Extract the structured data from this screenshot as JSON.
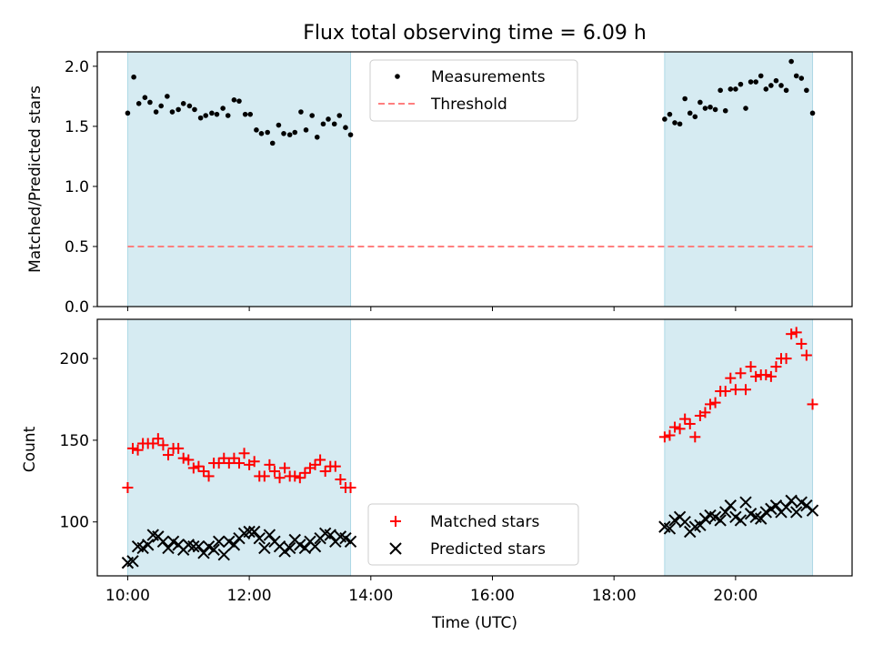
{
  "chart_data": [
    {
      "type": "scatter",
      "title": "Flux total observing time = 6.09 h",
      "xlabel": "",
      "ylabel": "Matched/Predicted stars",
      "xlim": [
        "09:30",
        "21:55"
      ],
      "ylim": [
        0,
        2.12
      ],
      "y_ticks": [
        "0.0",
        "0.5",
        "1.0",
        "1.5",
        "2.0"
      ],
      "x_ticks": [
        "10:00",
        "12:00",
        "14:00",
        "16:00",
        "18:00",
        "20:00"
      ],
      "shaded_spans": [
        [
          "10:00",
          "13:40"
        ],
        [
          "18:50",
          "21:16"
        ]
      ],
      "legend": {
        "position": "top-center",
        "entries": [
          "Measurements",
          "Threshold"
        ]
      },
      "threshold": {
        "name": "Threshold",
        "y": 0.5,
        "color": "#ff7f7f"
      },
      "series": [
        {
          "name": "Measurements",
          "color": "#000000",
          "x": [
            "10:00",
            "10:06",
            "10:11",
            "10:17",
            "10:22",
            "10:28",
            "10:33",
            "10:39",
            "10:44",
            "10:50",
            "10:55",
            "11:01",
            "11:06",
            "11:12",
            "11:17",
            "11:23",
            "11:28",
            "11:34",
            "11:39",
            "11:45",
            "11:50",
            "11:56",
            "12:01",
            "12:07",
            "12:12",
            "12:18",
            "12:23",
            "12:29",
            "12:34",
            "12:40",
            "12:45",
            "12:51",
            "12:56",
            "13:02",
            "13:07",
            "13:13",
            "13:18",
            "13:24",
            "13:29",
            "13:35",
            "13:40",
            "18:50",
            "18:55",
            "19:00",
            "19:05",
            "19:10",
            "19:15",
            "19:20",
            "19:25",
            "19:30",
            "19:35",
            "19:40",
            "19:45",
            "19:50",
            "19:55",
            "20:00",
            "20:05",
            "20:10",
            "20:15",
            "20:20",
            "20:25",
            "20:30",
            "20:35",
            "20:40",
            "20:45",
            "20:50",
            "20:55",
            "21:00",
            "21:05",
            "21:10",
            "21:16"
          ],
          "y": [
            1.61,
            1.91,
            1.69,
            1.74,
            1.7,
            1.62,
            1.67,
            1.75,
            1.62,
            1.64,
            1.69,
            1.67,
            1.64,
            1.57,
            1.59,
            1.61,
            1.6,
            1.65,
            1.59,
            1.72,
            1.71,
            1.6,
            1.6,
            1.47,
            1.44,
            1.45,
            1.36,
            1.51,
            1.44,
            1.43,
            1.45,
            1.62,
            1.47,
            1.59,
            1.41,
            1.52,
            1.56,
            1.52,
            1.59,
            1.49,
            1.43,
            1.56,
            1.6,
            1.53,
            1.52,
            1.73,
            1.61,
            1.58,
            1.7,
            1.65,
            1.66,
            1.64,
            1.8,
            1.63,
            1.81,
            1.81,
            1.85,
            1.65,
            1.87,
            1.87,
            1.92,
            1.81,
            1.84,
            1.88,
            1.84,
            1.8,
            2.04,
            1.92,
            1.9,
            1.8,
            1.61
          ]
        }
      ]
    },
    {
      "type": "scatter",
      "title": "",
      "xlabel": "Time (UTC)",
      "ylabel": "Count",
      "xlim": [
        "09:30",
        "21:55"
      ],
      "ylim": [
        67,
        224
      ],
      "y_ticks": [
        "100",
        "150",
        "200"
      ],
      "x_ticks": [
        "10:00",
        "12:00",
        "14:00",
        "16:00",
        "18:00",
        "20:00"
      ],
      "shaded_spans": [
        [
          "10:00",
          "13:40"
        ],
        [
          "18:50",
          "21:16"
        ]
      ],
      "legend": {
        "position": "bottom-center",
        "entries": [
          "Matched stars",
          "Predicted stars"
        ]
      },
      "series": [
        {
          "name": "Matched stars",
          "marker": "+",
          "color": "#ff0000",
          "x": [
            "10:00",
            "10:05",
            "10:10",
            "10:15",
            "10:20",
            "10:25",
            "10:30",
            "10:35",
            "10:40",
            "10:45",
            "10:50",
            "10:55",
            "11:00",
            "11:05",
            "11:10",
            "11:15",
            "11:20",
            "11:25",
            "11:30",
            "11:35",
            "11:40",
            "11:45",
            "11:50",
            "11:55",
            "12:00",
            "12:05",
            "12:10",
            "12:15",
            "12:20",
            "12:25",
            "12:30",
            "12:35",
            "12:40",
            "12:45",
            "12:50",
            "12:55",
            "13:00",
            "13:05",
            "13:10",
            "13:15",
            "13:20",
            "13:25",
            "13:30",
            "13:35",
            "13:40",
            "18:50",
            "18:55",
            "19:00",
            "19:05",
            "19:10",
            "19:15",
            "19:20",
            "19:25",
            "19:30",
            "19:35",
            "19:40",
            "19:45",
            "19:50",
            "19:55",
            "20:00",
            "20:05",
            "20:10",
            "20:15",
            "20:20",
            "20:25",
            "20:30",
            "20:35",
            "20:40",
            "20:45",
            "20:50",
            "20:55",
            "21:00",
            "21:05",
            "21:10",
            "21:16"
          ],
          "y": [
            121,
            145,
            144,
            148,
            148,
            148,
            151,
            147,
            141,
            145,
            145,
            139,
            138,
            133,
            134,
            131,
            128,
            136,
            136,
            139,
            136,
            139,
            136,
            142,
            135,
            137,
            128,
            128,
            135,
            131,
            127,
            133,
            128,
            128,
            127,
            130,
            133,
            135,
            138,
            131,
            134,
            134,
            126,
            121,
            121,
            152,
            153,
            158,
            157,
            163,
            160,
            152,
            165,
            167,
            172,
            173,
            180,
            180,
            188,
            181,
            191,
            181,
            195,
            189,
            190,
            190,
            189,
            195,
            200,
            200,
            215,
            216,
            209,
            202,
            172
          ]
        },
        {
          "name": "Predicted stars",
          "marker": "x",
          "color": "#000000",
          "x": [
            "10:00",
            "10:05",
            "10:10",
            "10:15",
            "10:20",
            "10:25",
            "10:30",
            "10:35",
            "10:40",
            "10:45",
            "10:50",
            "10:55",
            "11:00",
            "11:05",
            "11:10",
            "11:15",
            "11:20",
            "11:25",
            "11:30",
            "11:35",
            "11:40",
            "11:45",
            "11:50",
            "11:55",
            "12:00",
            "12:05",
            "12:10",
            "12:15",
            "12:20",
            "12:25",
            "12:30",
            "12:35",
            "12:40",
            "12:45",
            "12:50",
            "12:55",
            "13:00",
            "13:05",
            "13:10",
            "13:15",
            "13:20",
            "13:25",
            "13:30",
            "13:35",
            "13:40",
            "18:50",
            "18:55",
            "19:00",
            "19:05",
            "19:10",
            "19:15",
            "19:20",
            "19:25",
            "19:30",
            "19:35",
            "19:40",
            "19:45",
            "19:50",
            "19:55",
            "20:00",
            "20:05",
            "20:10",
            "20:15",
            "20:20",
            "20:25",
            "20:30",
            "20:35",
            "20:40",
            "20:45",
            "20:50",
            "20:55",
            "21:00",
            "21:05",
            "21:10",
            "21:16"
          ],
          "y": [
            75,
            76,
            85,
            84,
            86,
            92,
            91,
            88,
            84,
            88,
            86,
            83,
            86,
            85,
            85,
            81,
            85,
            83,
            88,
            80,
            88,
            86,
            90,
            93,
            94,
            94,
            90,
            84,
            92,
            88,
            85,
            82,
            84,
            89,
            86,
            84,
            88,
            85,
            90,
            93,
            92,
            88,
            91,
            90,
            88,
            97,
            96,
            101,
            103,
            100,
            94,
            97,
            98,
            102,
            104,
            103,
            101,
            106,
            110,
            103,
            101,
            112,
            105,
            103,
            102,
            106,
            108,
            110,
            106,
            109,
            113,
            106,
            112,
            110,
            107
          ]
        }
      ]
    }
  ]
}
